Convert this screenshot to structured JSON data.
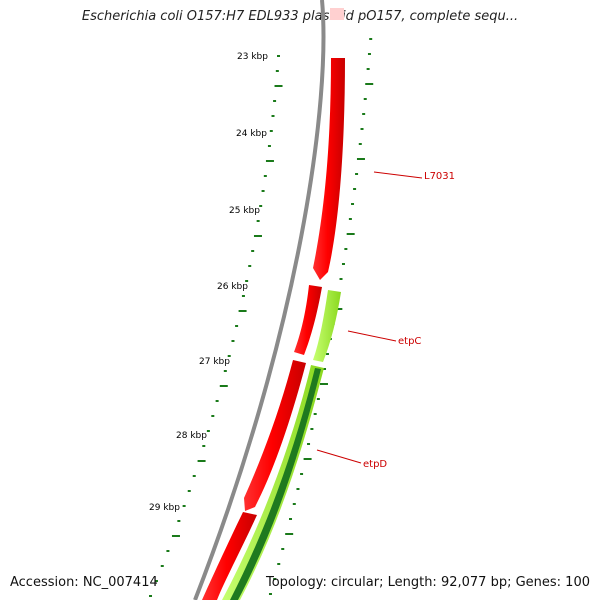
{
  "header": {
    "title": "Escherichia coli O157:H7 EDL933 plasmid pO157, complete sequ..."
  },
  "footer": {
    "accession": "Accession: NC_007414",
    "summary": "Topology: circular; Length: 92,077 bp; Genes: 100"
  },
  "scale_labels": [
    "23 kbp",
    "24 kbp",
    "25 kbp",
    "26 kbp",
    "27 kbp",
    "28 kbp",
    "29 kbp"
  ],
  "gene_labels": [
    "L7031",
    "etpC",
    "etpD"
  ],
  "colors": {
    "backbone": "#8a8a8a",
    "cds_forward": "#ff0000",
    "cds_forward_light": "#ffd0d0",
    "cds_reverse": "#a6f23a",
    "cds_reverse_dark": "#1f7a1f",
    "tick": "#1a7a1a",
    "label": "#cc0000"
  }
}
